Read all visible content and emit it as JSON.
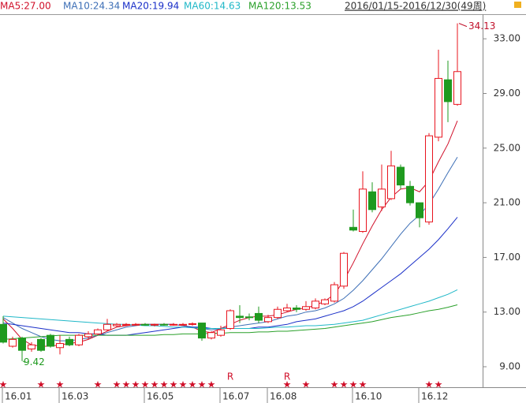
{
  "chart_data": {
    "type": "candlestick",
    "date_range": "2016/01/15-2016/12/30(49周)",
    "categories": [
      "16.01",
      null,
      null,
      null,
      null,
      null,
      "16.03",
      null,
      null,
      null,
      null,
      null,
      null,
      null,
      null,
      "16.05",
      null,
      null,
      null,
      null,
      null,
      null,
      null,
      "16.07",
      null,
      null,
      null,
      null,
      "16.08",
      null,
      null,
      null,
      null,
      null,
      null,
      null,
      null,
      "16.10",
      null,
      null,
      null,
      null,
      null,
      null,
      "16.12",
      null,
      null,
      null,
      null
    ],
    "open": [
      12.1,
      10.5,
      11.1,
      10.3,
      11.0,
      11.3,
      10.4,
      11.0,
      10.6,
      11.2,
      11.4,
      11.7,
      12.0,
      12.1,
      12.1,
      12.1,
      12.05,
      12.1,
      12.05,
      12.1,
      12.1,
      12.2,
      11.1,
      11.3,
      11.8,
      12.7,
      12.65,
      12.9,
      12.3,
      12.6,
      13.1,
      13.3,
      13.2,
      13.3,
      13.6,
      13.8,
      14.9,
      19.2,
      18.9,
      21.8,
      20.7,
      21.3,
      23.6,
      22.2,
      21.0,
      19.6,
      25.8,
      30.0,
      28.2
    ],
    "high": [
      12.7,
      11.2,
      11.2,
      10.8,
      11.1,
      11.4,
      11.3,
      11.2,
      11.4,
      11.6,
      11.8,
      12.5,
      12.2,
      12.2,
      12.2,
      12.2,
      12.15,
      12.2,
      12.2,
      12.2,
      12.25,
      12.2,
      11.6,
      12.0,
      13.2,
      13.5,
      12.9,
      13.4,
      12.8,
      13.4,
      13.6,
      13.5,
      13.8,
      14.0,
      14.0,
      15.2,
      17.4,
      20.5,
      23.3,
      22.5,
      23.8,
      24.8,
      23.8,
      22.6,
      21.0,
      26.1,
      32.2,
      31.4,
      34.13
    ],
    "low": [
      10.7,
      10.4,
      9.42,
      10.1,
      10.1,
      10.4,
      9.9,
      10.5,
      10.5,
      11.0,
      11.3,
      11.6,
      11.9,
      12.0,
      12.0,
      12.0,
      11.95,
      12.0,
      12.0,
      12.0,
      12.0,
      10.9,
      11.0,
      11.2,
      11.7,
      12.2,
      12.4,
      12.2,
      12.2,
      12.5,
      13.0,
      13.0,
      13.1,
      13.2,
      13.5,
      13.7,
      14.7,
      18.9,
      18.8,
      20.3,
      20.4,
      21.2,
      22.0,
      20.8,
      19.2,
      19.4,
      25.5,
      26.9,
      28.1
    ],
    "close": [
      10.8,
      11.0,
      10.2,
      10.6,
      10.2,
      10.5,
      10.7,
      10.6,
      11.3,
      11.4,
      11.7,
      12.1,
      12.1,
      12.1,
      12.1,
      12.05,
      12.1,
      12.05,
      12.1,
      12.1,
      12.15,
      11.1,
      11.5,
      11.7,
      13.1,
      12.6,
      12.6,
      12.4,
      12.6,
      13.2,
      13.3,
      13.2,
      13.4,
      13.8,
      13.9,
      15.0,
      17.3,
      19.0,
      22.0,
      20.5,
      22.0,
      23.7,
      22.3,
      21.0,
      19.9,
      25.9,
      30.1,
      28.4,
      30.6
    ],
    "up_color": "#e8141e",
    "down_color": "#1f9a1f",
    "max_label_index": 48,
    "min_label_index": 2,
    "series": [
      {
        "name": "MA5:27.00",
        "color": "#d0102a",
        "values": [
          12.5,
          11.8,
          11.0,
          10.6,
          10.5,
          10.5,
          10.6,
          10.7,
          10.8,
          11.0,
          11.3,
          11.6,
          11.9,
          12.0,
          12.1,
          12.1,
          12.1,
          12.1,
          12.1,
          12.0,
          11.9,
          11.6,
          11.5,
          11.8,
          12.1,
          12.4,
          12.6,
          12.7,
          12.7,
          12.8,
          13.0,
          13.2,
          13.3,
          13.5,
          13.8,
          14.3,
          15.3,
          16.6,
          18.0,
          19.3,
          20.5,
          21.4,
          22.0,
          22.1,
          21.8,
          22.6,
          24.0,
          25.3,
          27.0
        ]
      },
      {
        "name": "MA10:24.34",
        "color": "#3d6fb6",
        "values": [
          12.6,
          12.2,
          11.8,
          11.5,
          11.2,
          11.0,
          10.9,
          10.9,
          11.0,
          11.1,
          11.3,
          11.5,
          11.7,
          11.9,
          12.0,
          12.1,
          12.1,
          12.1,
          12.1,
          12.0,
          11.9,
          11.8,
          11.7,
          11.8,
          11.9,
          12.0,
          12.1,
          12.2,
          12.3,
          12.5,
          12.7,
          12.8,
          13.0,
          13.1,
          13.3,
          13.6,
          14.0,
          14.6,
          15.3,
          16.1,
          16.9,
          17.8,
          18.7,
          19.5,
          20.1,
          20.9,
          22.0,
          23.2,
          24.34
        ]
      },
      {
        "name": "MA20:19.94",
        "color": "#1a2fc8",
        "values": [
          12.2,
          12.1,
          12.0,
          11.9,
          11.8,
          11.7,
          11.6,
          11.5,
          11.5,
          11.4,
          11.4,
          11.3,
          11.3,
          11.3,
          11.4,
          11.5,
          11.6,
          11.7,
          11.8,
          11.9,
          11.9,
          11.9,
          11.8,
          11.8,
          11.8,
          11.8,
          11.8,
          11.9,
          11.9,
          12.0,
          12.1,
          12.3,
          12.4,
          12.5,
          12.7,
          12.9,
          13.1,
          13.4,
          13.8,
          14.3,
          14.8,
          15.3,
          15.8,
          16.4,
          17.0,
          17.6,
          18.3,
          19.1,
          19.94
        ]
      },
      {
        "name": "MA60:14.63",
        "color": "#20b8c8",
        "values": [
          12.7,
          12.65,
          12.6,
          12.55,
          12.5,
          12.45,
          12.4,
          12.35,
          12.3,
          12.25,
          12.2,
          12.15,
          12.1,
          12.1,
          12.05,
          12.0,
          12.0,
          11.95,
          11.9,
          11.9,
          11.85,
          11.8,
          11.8,
          11.8,
          11.8,
          11.8,
          11.8,
          11.8,
          11.85,
          11.9,
          11.9,
          11.95,
          12.0,
          12.0,
          12.05,
          12.1,
          12.2,
          12.3,
          12.4,
          12.6,
          12.8,
          13.0,
          13.2,
          13.4,
          13.6,
          13.8,
          14.05,
          14.3,
          14.63
        ]
      },
      {
        "name": "MA120:13.53",
        "color": "#2aa02a",
        "values": [
          11.0,
          11.05,
          11.1,
          11.15,
          11.2,
          11.25,
          11.3,
          11.3,
          11.3,
          11.3,
          11.3,
          11.3,
          11.3,
          11.3,
          11.3,
          11.3,
          11.3,
          11.35,
          11.35,
          11.4,
          11.4,
          11.4,
          11.45,
          11.45,
          11.5,
          11.5,
          11.5,
          11.55,
          11.55,
          11.6,
          11.6,
          11.65,
          11.7,
          11.75,
          11.8,
          11.9,
          12.0,
          12.1,
          12.2,
          12.3,
          12.45,
          12.6,
          12.7,
          12.8,
          12.95,
          13.1,
          13.2,
          13.35,
          13.53
        ]
      }
    ],
    "stars": [
      "★",
      null,
      null,
      null,
      "★",
      null,
      "★",
      null,
      null,
      null,
      "★",
      null,
      "★",
      "★",
      "★",
      "★",
      "★",
      "★",
      "★",
      "★",
      "★",
      "★",
      "★",
      null,
      null,
      null,
      null,
      null,
      null,
      null,
      "★",
      null,
      "★",
      null,
      null,
      "★",
      "★",
      "★",
      "★",
      null,
      null,
      null,
      null,
      null,
      null,
      "★",
      "★",
      null,
      null
    ],
    "r_marks": [
      null,
      null,
      null,
      null,
      null,
      null,
      null,
      null,
      null,
      null,
      null,
      null,
      null,
      null,
      null,
      null,
      null,
      null,
      null,
      null,
      null,
      null,
      null,
      null,
      "R",
      null,
      null,
      null,
      null,
      null,
      "R",
      null,
      null,
      null,
      null,
      null,
      null,
      null,
      null,
      null,
      null,
      null,
      null,
      null,
      null,
      null,
      null,
      null,
      null
    ],
    "ylim": [
      7.5,
      34.8
    ],
    "yticks": [
      {
        "value": 9,
        "label": "9.00"
      },
      {
        "value": 13,
        "label": "13.00"
      },
      {
        "value": 17,
        "label": "17.00"
      },
      {
        "value": 21,
        "label": "21.00"
      },
      {
        "value": 25,
        "label": "25.00"
      },
      {
        "value": 29,
        "label": "29.00"
      },
      {
        "value": 33,
        "label": "33.00"
      }
    ]
  }
}
